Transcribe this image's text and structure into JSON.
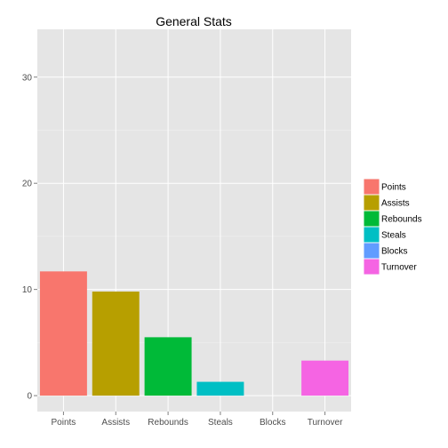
{
  "chart_data": {
    "type": "bar",
    "title": "General Stats",
    "xlabel": "",
    "ylabel": "",
    "categories": [
      "Points",
      "Assists",
      "Rebounds",
      "Steals",
      "Blocks",
      "Turnover"
    ],
    "values": [
      11.7,
      9.8,
      5.5,
      1.3,
      0,
      3.3
    ],
    "colors": [
      "#F8766D",
      "#B79F00",
      "#00BA38",
      "#00BFC4",
      "#619CFF",
      "#F564E3"
    ],
    "ylim": [
      -1.5,
      34.5
    ],
    "yticks": [
      0,
      10,
      20,
      30
    ],
    "grid": true,
    "panel_background": "#E5E5E5",
    "grid_color": "#FFFFFF",
    "legend": {
      "position": "right",
      "entries": [
        "Points",
        "Assists",
        "Rebounds",
        "Steals",
        "Blocks",
        "Turnover"
      ]
    }
  }
}
